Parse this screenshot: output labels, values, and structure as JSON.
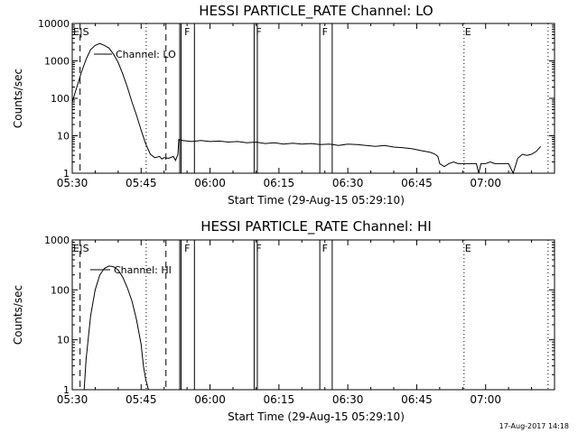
{
  "footer": {
    "timestamp": "17-Aug-2017 14:18"
  },
  "chart_data": [
    {
      "type": "line",
      "title": "HESSI PARTICLE_RATE Channel: LO",
      "xlabel": "Start Time (29-Aug-15 05:29:10)",
      "ylabel": "Counts/sec",
      "y_scale": "log",
      "xlim_minutes": [
        330,
        435
      ],
      "ylim": [
        1,
        10000
      ],
      "x_tick_labels": [
        "05:30",
        "05:45",
        "06:00",
        "06:15",
        "06:30",
        "06:45",
        "07:00"
      ],
      "y_tick_labels": [
        "1",
        "10",
        "100",
        "1000",
        "10000"
      ],
      "legend": "Channel: LO",
      "series": [
        {
          "name": "Channel: LO",
          "x_minutes": [
            330.0,
            331.0,
            332.0,
            333.0,
            334.0,
            335.0,
            336.0,
            337.0,
            338.0,
            339.0,
            340.0,
            341.0,
            342.0,
            343.0,
            344.0,
            345.0,
            346.0,
            347.0,
            348.0,
            349.0,
            349.5,
            350.0,
            351.0,
            352.0,
            352.5,
            353.0,
            353.2,
            354,
            356,
            358,
            360,
            362,
            364,
            366,
            368,
            370,
            372,
            374,
            376,
            378,
            380,
            382,
            384,
            386,
            388,
            390,
            392,
            394,
            396,
            398,
            400,
            402,
            404,
            406,
            408,
            409,
            409.6,
            410,
            411,
            412,
            413,
            414,
            415,
            416,
            417,
            418,
            418.5,
            419,
            420,
            421,
            422,
            423,
            424,
            425,
            426,
            427,
            428,
            429,
            430,
            431,
            432
          ],
          "values": [
            80,
            200,
            500,
            1100,
            2000,
            2600,
            2900,
            2600,
            2200,
            1500,
            900,
            450,
            200,
            80,
            35,
            14,
            6,
            3.2,
            2.6,
            2.8,
            2.4,
            2.6,
            2.5,
            2.8,
            2.2,
            3.2,
            8,
            7.5,
            7,
            7.5,
            7,
            7.2,
            6.8,
            7,
            6.5,
            6.8,
            6.2,
            6.5,
            6,
            6.3,
            6,
            6.2,
            5.8,
            6,
            5.5,
            6,
            5.8,
            5.5,
            5.2,
            5.5,
            5,
            4.8,
            4.5,
            4,
            3.6,
            3.2,
            2.8,
            1.8,
            1.5,
            1.8,
            2,
            1.8,
            1.8,
            1.8,
            1.8,
            1.8,
            1.0,
            1.8,
            1.8,
            2.0,
            1.8,
            1.8,
            1.8,
            1.8,
            1.0,
            2.5,
            3.2,
            3.0,
            3.2,
            3.8,
            5.2
          ]
        }
      ]
    },
    {
      "type": "line",
      "title": "HESSI PARTICLE_RATE Channel: HI",
      "xlabel": "Start Time (29-Aug-15 05:29:10)",
      "ylabel": "Counts/sec",
      "y_scale": "log",
      "xlim_minutes": [
        330,
        435
      ],
      "ylim": [
        1,
        1000
      ],
      "x_tick_labels": [
        "05:30",
        "05:45",
        "06:00",
        "06:15",
        "06:30",
        "06:45",
        "07:00"
      ],
      "y_tick_labels": [
        "1",
        "10",
        "100",
        "1000"
      ],
      "legend": "Channel: HI",
      "series": [
        {
          "name": "Channel: HI",
          "x_minutes": [
            332.6,
            333.0,
            334.0,
            335.0,
            336.0,
            337.0,
            338.0,
            339.0,
            340.0,
            341.0,
            342.0,
            343.0,
            344.0,
            345.0,
            345.5,
            346.0,
            346.6
          ],
          "values": [
            1.0,
            4,
            30,
            100,
            200,
            270,
            300,
            290,
            250,
            180,
            110,
            60,
            25,
            8,
            3,
            1.6,
            1.0
          ]
        }
      ]
    }
  ],
  "event_markers": [
    {
      "label": "E|S",
      "minute": 330.0
    },
    {
      "label": "F",
      "minute": 354.2
    },
    {
      "label": "F",
      "minute": 369.8
    },
    {
      "label": "F",
      "minute": 384.2
    },
    {
      "label": "E",
      "minute": 415.3
    }
  ]
}
